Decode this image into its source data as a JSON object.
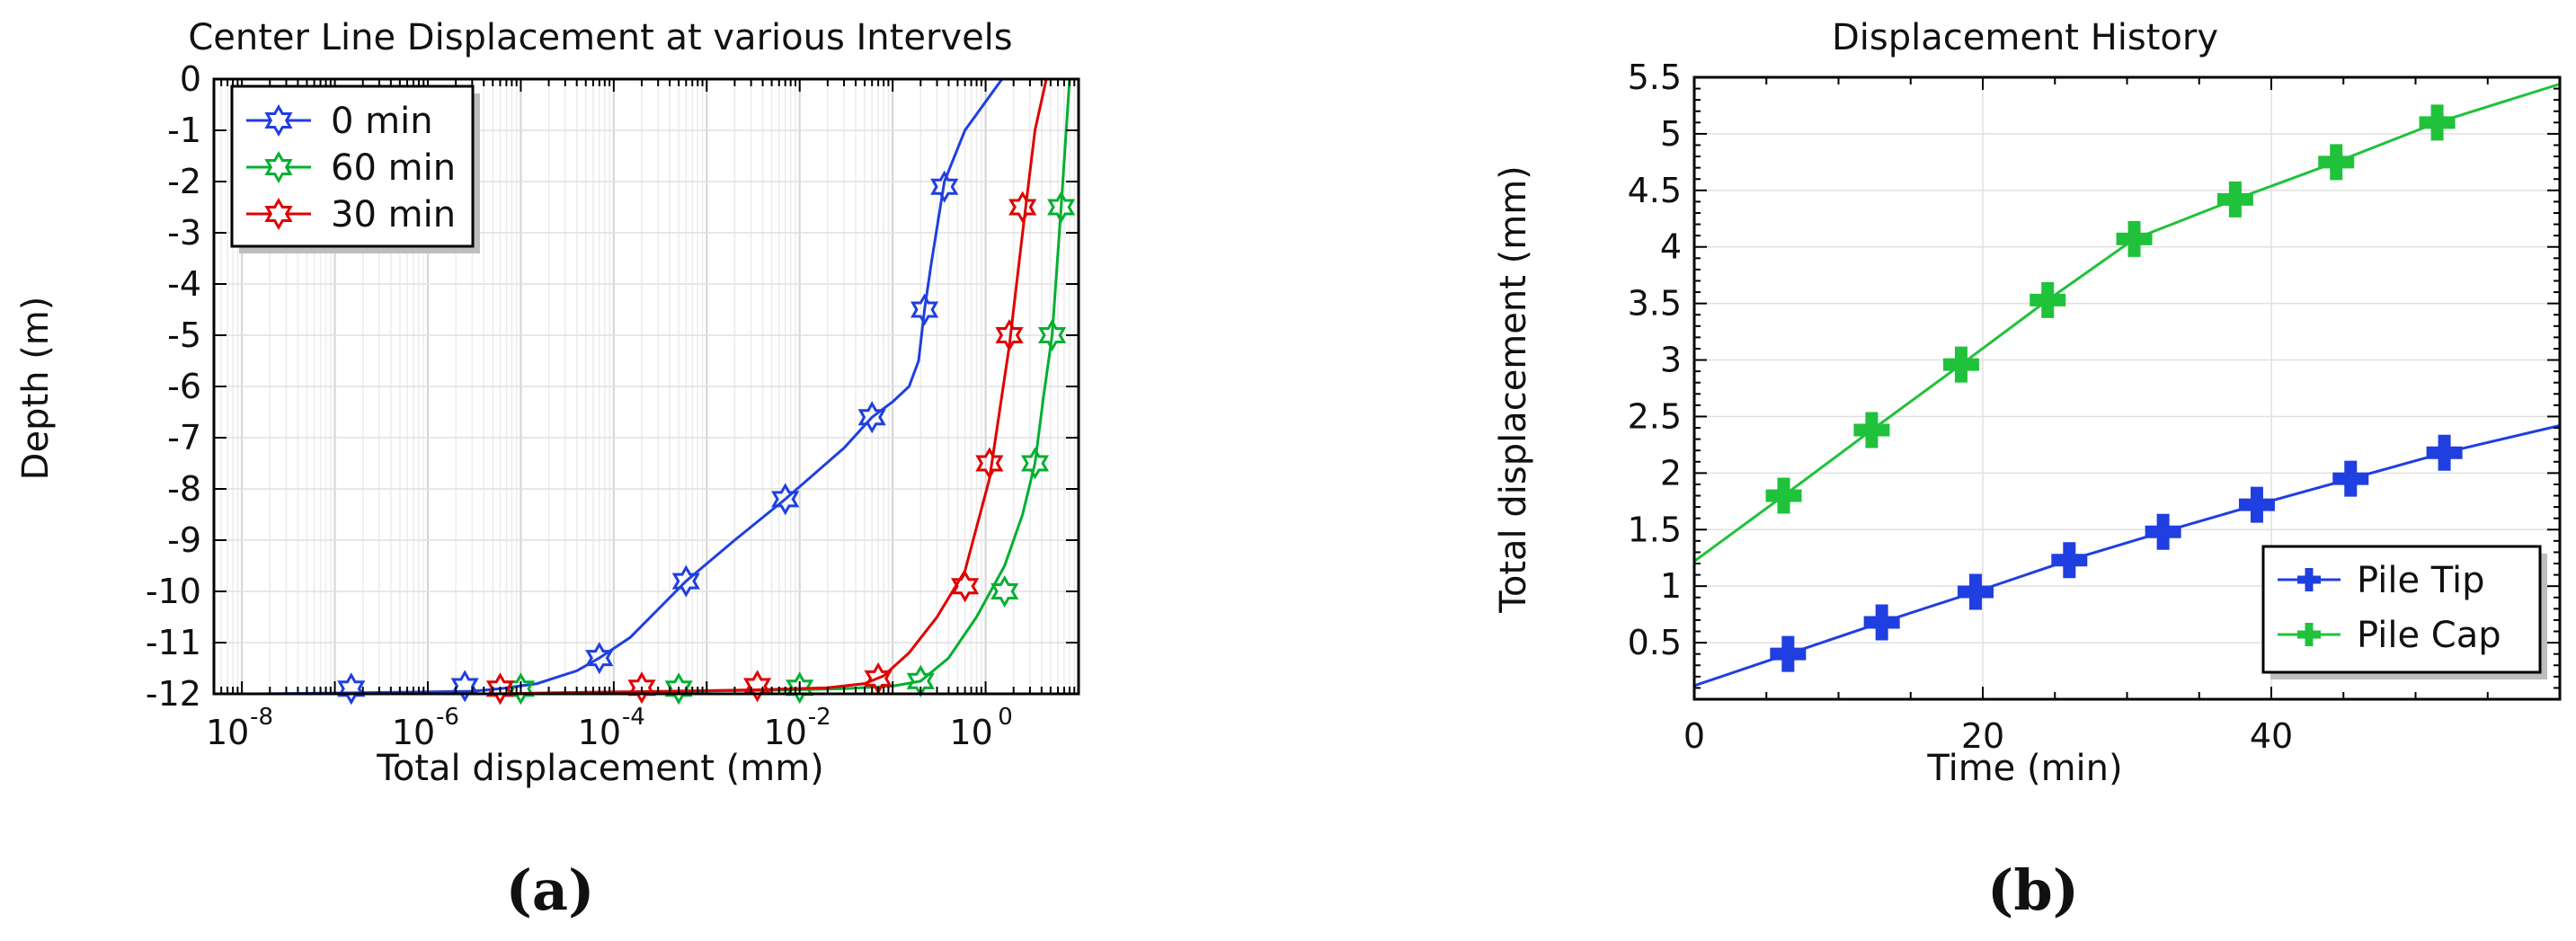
{
  "chart_data": [
    {
      "type": "line",
      "title": "Center Line Displacement at various Intervels",
      "xlabel": "Total displacement (mm)",
      "ylabel": "Depth (m)",
      "xscale": "log",
      "xlim": [
        5e-09,
        10
      ],
      "ylim": [
        -12,
        0
      ],
      "x_ticks": [
        {
          "base": "10",
          "exp": "-8",
          "value": 1e-08
        },
        {
          "base": "10",
          "exp": "-6",
          "value": 1e-06
        },
        {
          "base": "10",
          "exp": "-4",
          "value": 0.0001
        },
        {
          "base": "10",
          "exp": "-2",
          "value": 0.01
        },
        {
          "base": "10",
          "exp": "0",
          "value": 1
        }
      ],
      "y_ticks": [
        "0",
        "-1",
        "-2",
        "-3",
        "-4",
        "-5",
        "-6",
        "-7",
        "-8",
        "-9",
        "-10",
        "-11",
        "-12"
      ],
      "grid": true,
      "legend_position": "top-left",
      "panel_label": "(a)",
      "series": [
        {
          "name": "0 min",
          "color": "#1f3fe0",
          "marker": "hexagram",
          "x": [
            1.5e-08,
            1.6e-07,
            3e-06,
            6e-06,
            1.5e-05,
            4e-05,
            7e-05,
            0.00015,
            0.0006,
            0.002,
            0.007,
            0.03,
            0.06,
            0.1,
            0.15,
            0.19,
            0.22,
            0.26,
            0.36,
            0.6,
            1.5
          ],
          "y": [
            -12,
            -11.98,
            -11.95,
            -11.9,
            -11.8,
            -11.55,
            -11.3,
            -10.9,
            -9.8,
            -9.0,
            -8.2,
            -7.2,
            -6.6,
            -6.3,
            -6.0,
            -5.5,
            -4.5,
            -3.6,
            -2.0,
            -1.0,
            0
          ],
          "marker_x": [
            1.5e-07,
            2.5e-06,
            7e-05,
            0.0006,
            0.007,
            0.06,
            0.22,
            0.36
          ],
          "marker_y": [
            -11.9,
            -11.85,
            -11.3,
            -9.8,
            -8.2,
            -6.6,
            -4.5,
            -2.1
          ]
        },
        {
          "name": "60 min",
          "color": "#00b030",
          "marker": "hexagram",
          "x": [
            1.5e-05,
            0.0001,
            0.0005,
            0.005,
            0.03,
            0.1,
            0.2,
            0.4,
            0.8,
            1.6,
            2.5,
            3.4,
            4.2,
            5.2,
            6.5,
            8
          ],
          "y": [
            -12,
            -11.97,
            -11.95,
            -11.93,
            -11.9,
            -11.85,
            -11.75,
            -11.3,
            -10.5,
            -9.5,
            -8.5,
            -7.5,
            -6.2,
            -5.0,
            -2.5,
            0
          ],
          "marker_x": [
            1e-05,
            0.0005,
            0.01,
            0.2,
            1.6,
            3.4,
            5.2,
            6.5
          ],
          "marker_y": [
            -11.9,
            -11.9,
            -11.88,
            -11.75,
            -10.0,
            -7.5,
            -5.0,
            -2.5
          ]
        },
        {
          "name": "30 min",
          "color": "#e00000",
          "marker": "hexagram",
          "x": [
            5e-06,
            5e-05,
            0.0004,
            0.004,
            0.02,
            0.05,
            0.08,
            0.15,
            0.3,
            0.6,
            1.1,
            1.8,
            2.5,
            3.4,
            4.5
          ],
          "y": [
            -12,
            -11.97,
            -11.95,
            -11.92,
            -11.88,
            -11.8,
            -11.65,
            -11.2,
            -10.5,
            -9.6,
            -7.8,
            -5.2,
            -3.0,
            -1.0,
            0
          ],
          "marker_x": [
            6e-06,
            0.0002,
            0.0035,
            0.07,
            0.6,
            1.1,
            1.8,
            2.5
          ],
          "marker_y": [
            -11.9,
            -11.88,
            -11.85,
            -11.7,
            -9.9,
            -7.5,
            -5.0,
            -2.5
          ]
        }
      ]
    },
    {
      "type": "line",
      "title": "Displacement History",
      "xlabel": "Time (min)",
      "ylabel": "Total displacement (mm)",
      "xlim": [
        0,
        60
      ],
      "ylim": [
        0,
        5.5
      ],
      "x_ticks": [
        "0",
        "20",
        "40"
      ],
      "y_ticks": [
        "0.5",
        "1",
        "1.5",
        "2",
        "2.5",
        "3",
        "3.5",
        "4",
        "4.5",
        "5",
        "5.5"
      ],
      "grid": true,
      "legend_position": "bottom-right",
      "panel_label": "(b)",
      "series": [
        {
          "name": "Pile Tip",
          "color": "#1f3fe0",
          "marker": "plus",
          "x": [
            0,
            6.5,
            13,
            19.5,
            26,
            32.5,
            39,
            45.5,
            52,
            60
          ],
          "y": [
            0.12,
            0.4,
            0.68,
            0.95,
            1.23,
            1.48,
            1.72,
            1.95,
            2.18,
            2.42
          ],
          "marker_x": [
            6.5,
            13,
            19.5,
            26,
            32.5,
            39,
            45.5,
            52
          ],
          "marker_y": [
            0.4,
            0.68,
            0.95,
            1.23,
            1.48,
            1.72,
            1.95,
            2.18
          ]
        },
        {
          "name": "Pile Cap",
          "color": "#1fc23a",
          "marker": "plus",
          "x": [
            0,
            6.2,
            12.3,
            18.5,
            24.5,
            30.5,
            37.5,
            44.5,
            51.5,
            60
          ],
          "y": [
            1.22,
            1.8,
            2.38,
            2.96,
            3.53,
            4.07,
            4.42,
            4.75,
            5.1,
            5.44
          ],
          "marker_x": [
            6.2,
            12.3,
            18.5,
            24.5,
            30.5,
            37.5,
            44.5,
            51.5
          ],
          "marker_y": [
            1.8,
            2.38,
            2.96,
            3.53,
            4.07,
            4.42,
            4.75,
            5.1
          ]
        }
      ]
    }
  ]
}
